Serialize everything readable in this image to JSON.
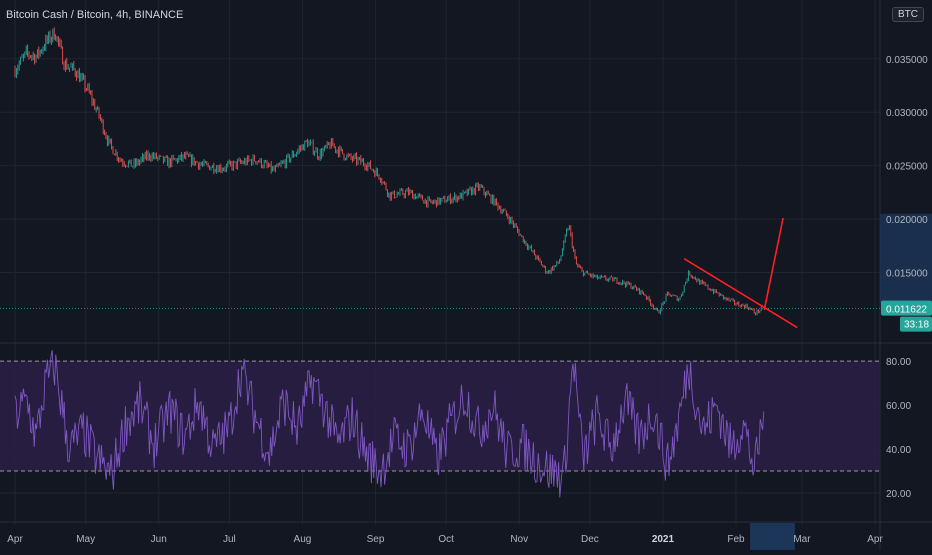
{
  "header": {
    "title": "Bitcoin Cash / Bitcoin, 4h, BINANCE",
    "currency_badge": "BTC"
  },
  "colors": {
    "background": "#131722",
    "grid": "#1f2431",
    "up": "#26a69a",
    "down": "#ef5350",
    "rsi_line": "#7e57c2",
    "rsi_band": "#2a1f45",
    "trendline": "#ff1f1f",
    "price_tag": "#26a69a",
    "time_highlight": "#1e3a5f",
    "price_highlight": "#1e3a5f"
  },
  "chart_data": [
    {
      "type": "line",
      "title": "",
      "xlabel": "",
      "ylabel": "",
      "x_ticks": [
        "Apr",
        "May",
        "Jun",
        "Jul",
        "Aug",
        "Sep",
        "Oct",
        "Nov",
        "Dec",
        "2021",
        "Feb",
        "Mar",
        "Apr"
      ],
      "y_ticks": [
        "0.035000",
        "0.030000",
        "0.025000",
        "0.020000",
        "0.015000"
      ],
      "ylim": [
        0.0085,
        0.0405
      ],
      "current_price": "0.011622",
      "countdown": "33:18",
      "series": [
        {
          "x": [
            "2020-04-01",
            "2020-04-06",
            "2020-04-10",
            "2020-04-14",
            "2020-04-18",
            "2020-04-22",
            "2020-04-27",
            "2020-05-02",
            "2020-05-07",
            "2020-05-11",
            "2020-05-16",
            "2020-05-21",
            "2020-05-28",
            "2020-06-05",
            "2020-06-12",
            "2020-06-20",
            "2020-06-28",
            "2020-07-05",
            "2020-07-12",
            "2020-07-20",
            "2020-07-28",
            "2020-08-03",
            "2020-08-08",
            "2020-08-13",
            "2020-08-20",
            "2020-08-28",
            "2020-09-03",
            "2020-09-07",
            "2020-09-15",
            "2020-09-24",
            "2020-10-01",
            "2020-10-08",
            "2020-10-15",
            "2020-10-22",
            "2020-10-28",
            "2020-11-03",
            "2020-11-08",
            "2020-11-13",
            "2020-11-18",
            "2020-11-22",
            "2020-11-25",
            "2020-11-28",
            "2020-12-04",
            "2020-12-12",
            "2020-12-18",
            "2020-12-24",
            "2020-12-30",
            "2021-01-03",
            "2021-01-08",
            "2021-01-12",
            "2021-01-17",
            "2021-01-23",
            "2021-01-28",
            "2021-02-02",
            "2021-02-06",
            "2021-02-09",
            "2021-02-12"
          ],
          "values": [
            0.034,
            0.0355,
            0.0352,
            0.0365,
            0.0375,
            0.0345,
            0.0338,
            0.032,
            0.0295,
            0.027,
            0.0255,
            0.025,
            0.026,
            0.0253,
            0.0258,
            0.025,
            0.0248,
            0.0252,
            0.0256,
            0.0245,
            0.026,
            0.0272,
            0.026,
            0.027,
            0.0258,
            0.0252,
            0.024,
            0.0222,
            0.0225,
            0.0215,
            0.0218,
            0.0222,
            0.023,
            0.0215,
            0.02,
            0.018,
            0.0165,
            0.015,
            0.016,
            0.0195,
            0.0158,
            0.015,
            0.0145,
            0.0143,
            0.0138,
            0.013,
            0.0112,
            0.013,
            0.0125,
            0.015,
            0.014,
            0.0132,
            0.0125,
            0.012,
            0.0118,
            0.0112,
            0.0116
          ]
        }
      ],
      "annotations": [
        {
          "type": "trendline",
          "from": [
            "2021-01-10",
            0.0163
          ],
          "to": [
            "2021-02-27",
            0.00985
          ]
        },
        {
          "type": "trendline",
          "from": [
            "2021-02-13",
            0.0115
          ],
          "to": [
            "2021-02-21",
            0.0201
          ]
        }
      ]
    },
    {
      "type": "line",
      "title": "",
      "y_ticks": [
        "80.00",
        "60.00",
        "40.00",
        "20.00"
      ],
      "ylim": [
        10,
        86
      ],
      "bands": [
        30,
        80
      ],
      "series": [
        {
          "x": [
            "2020-04-01",
            "2020-04-06",
            "2020-04-10",
            "2020-04-14",
            "2020-04-18",
            "2020-04-24",
            "2020-04-30",
            "2020-05-06",
            "2020-05-12",
            "2020-05-18",
            "2020-05-24",
            "2020-05-30",
            "2020-06-06",
            "2020-06-12",
            "2020-06-18",
            "2020-06-24",
            "2020-07-01",
            "2020-07-06",
            "2020-07-12",
            "2020-07-18",
            "2020-07-24",
            "2020-07-30",
            "2020-08-05",
            "2020-08-10",
            "2020-08-16",
            "2020-08-22",
            "2020-08-28",
            "2020-09-03",
            "2020-09-09",
            "2020-09-15",
            "2020-09-21",
            "2020-09-27",
            "2020-10-03",
            "2020-10-09",
            "2020-10-15",
            "2020-10-21",
            "2020-10-27",
            "2020-11-02",
            "2020-11-08",
            "2020-11-14",
            "2020-11-20",
            "2020-11-24",
            "2020-11-28",
            "2020-12-04",
            "2020-12-10",
            "2020-12-16",
            "2020-12-22",
            "2020-12-28",
            "2021-01-03",
            "2021-01-08",
            "2021-01-12",
            "2021-01-18",
            "2021-01-24",
            "2021-01-30",
            "2021-02-04",
            "2021-02-09",
            "2021-02-13"
          ],
          "values": [
            55,
            62,
            45,
            70,
            78,
            40,
            48,
            35,
            28,
            52,
            60,
            42,
            58,
            45,
            62,
            40,
            50,
            76,
            55,
            38,
            62,
            48,
            72,
            60,
            42,
            55,
            38,
            30,
            45,
            40,
            58,
            35,
            52,
            65,
            48,
            60,
            38,
            42,
            35,
            30,
            28,
            82,
            35,
            55,
            40,
            62,
            45,
            58,
            32,
            55,
            78,
            48,
            60,
            40,
            52,
            30,
            58
          ]
        }
      ]
    }
  ]
}
